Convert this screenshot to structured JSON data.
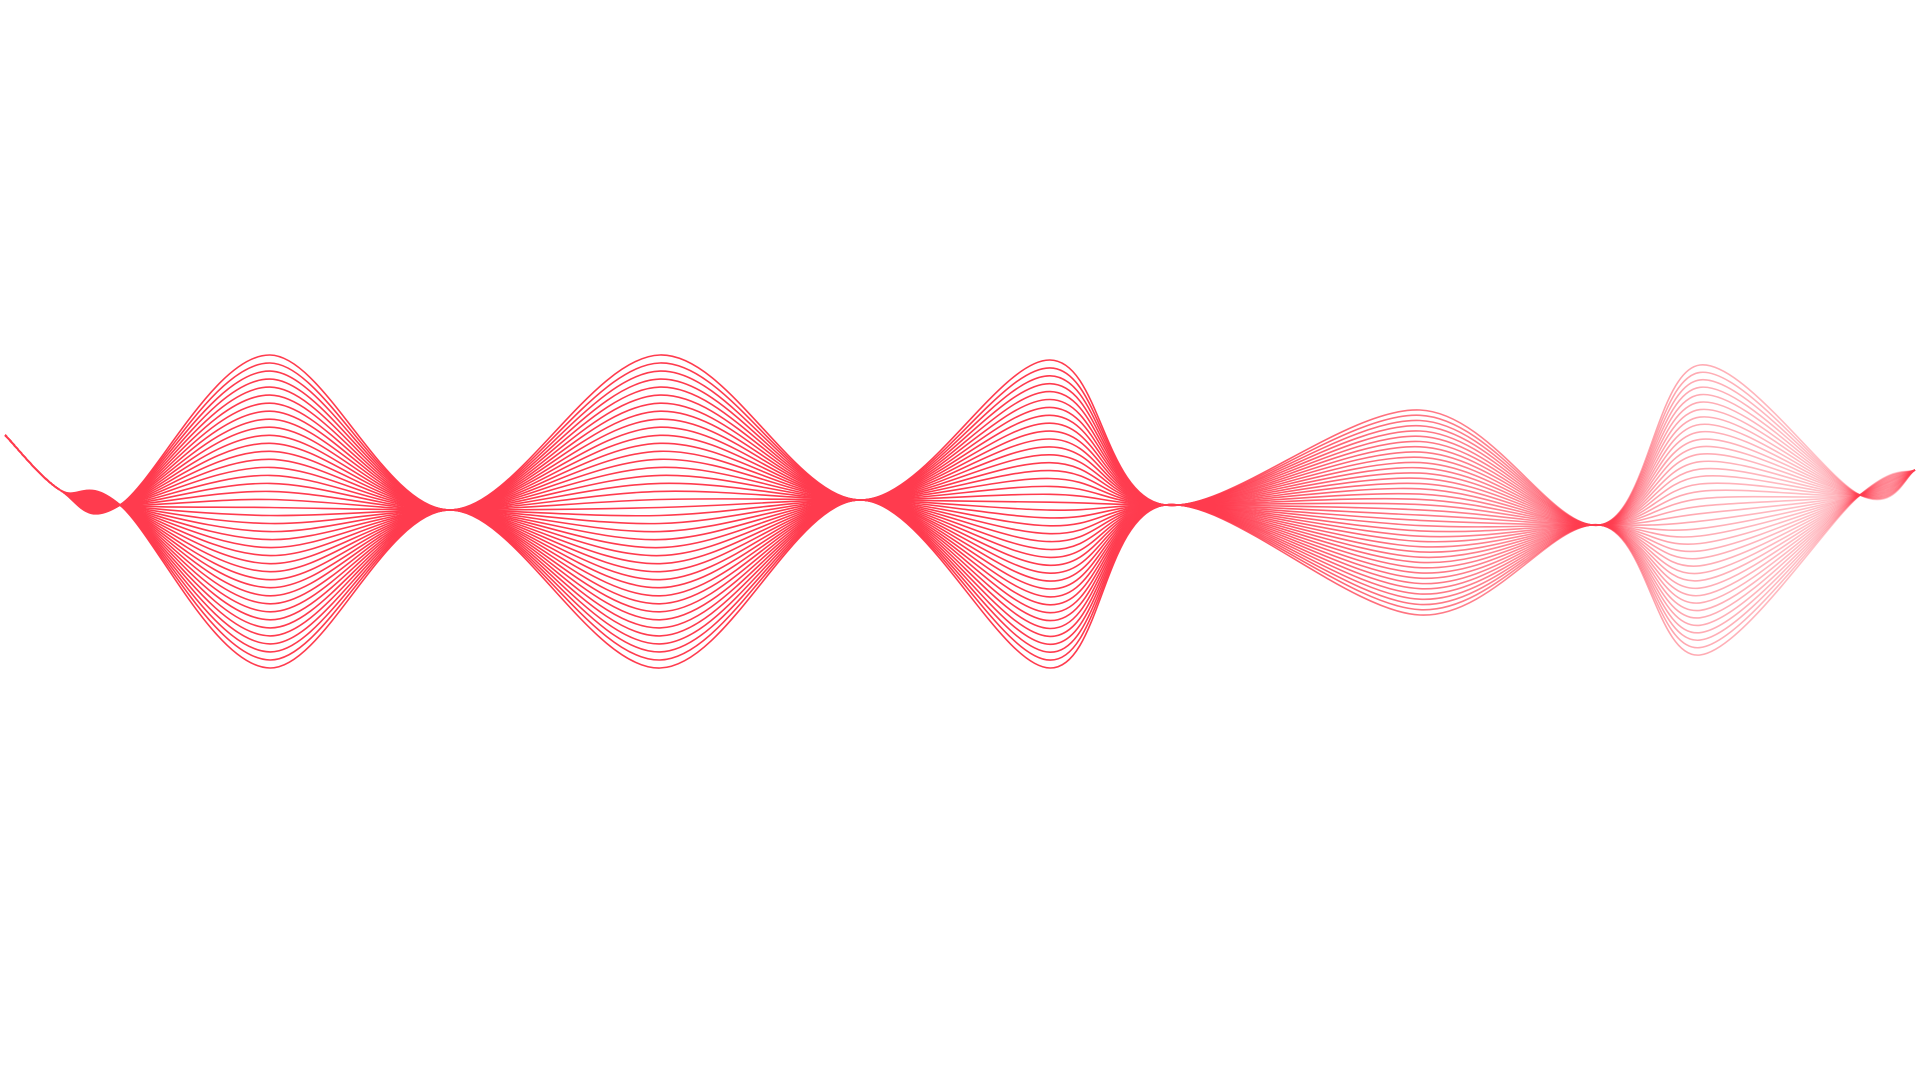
{
  "artwork": {
    "subject": "abstract-wave-line-art",
    "background_color": "#ffffff",
    "stroke_color": "#ff3b4e",
    "line_count": 40,
    "fade_to_right": true
  }
}
